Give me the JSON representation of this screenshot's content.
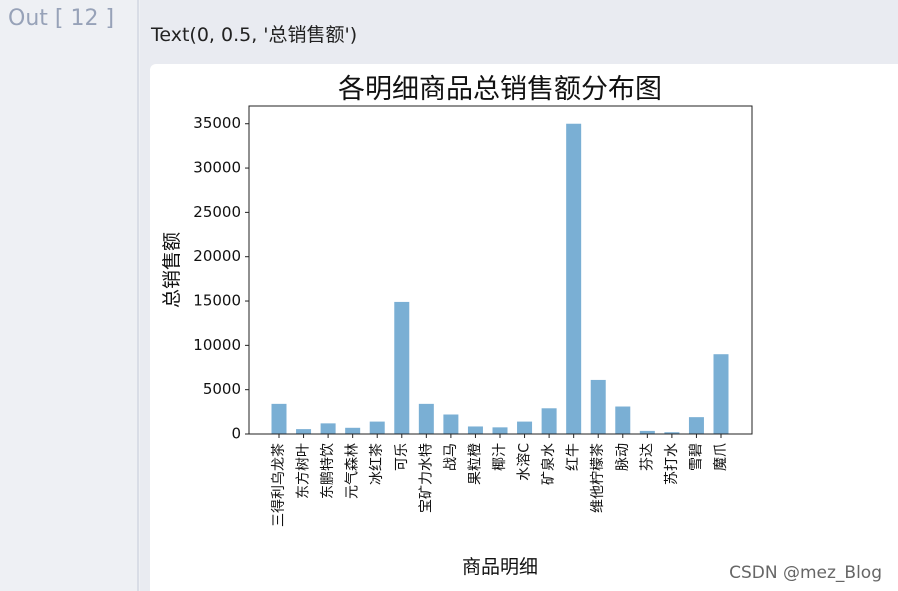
{
  "prompt": {
    "label": "Out [ 12 ]"
  },
  "output": {
    "text": "Text(0, 0.5, '总销售额')"
  },
  "watermark": "CSDN @mez_Blog",
  "chart_data": {
    "type": "bar",
    "title": "各明细商品总销售额分布图",
    "xlabel": "商品明细",
    "ylabel": "总销售额",
    "ylim": [
      0,
      37000
    ],
    "yticks": [
      0,
      5000,
      10000,
      15000,
      20000,
      25000,
      30000,
      35000
    ],
    "bar_color": "#7aafd4",
    "grid": false,
    "categories": [
      "三得利乌龙茶",
      "东方树叶",
      "东鹏特饮",
      "元气森林",
      "冰红茶",
      "可乐",
      "宝矿力水特",
      "战马",
      "果粒橙",
      "椰汁",
      "水溶C",
      "矿泉水",
      "红牛",
      "维他柠檬茶",
      "脉动",
      "芬达",
      "苏打水",
      "雪碧",
      "魔爪"
    ],
    "values": [
      3400,
      550,
      1200,
      700,
      1400,
      14900,
      3400,
      2200,
      850,
      750,
      1400,
      2900,
      35000,
      6100,
      3100,
      350,
      200,
      1900,
      9000
    ]
  }
}
